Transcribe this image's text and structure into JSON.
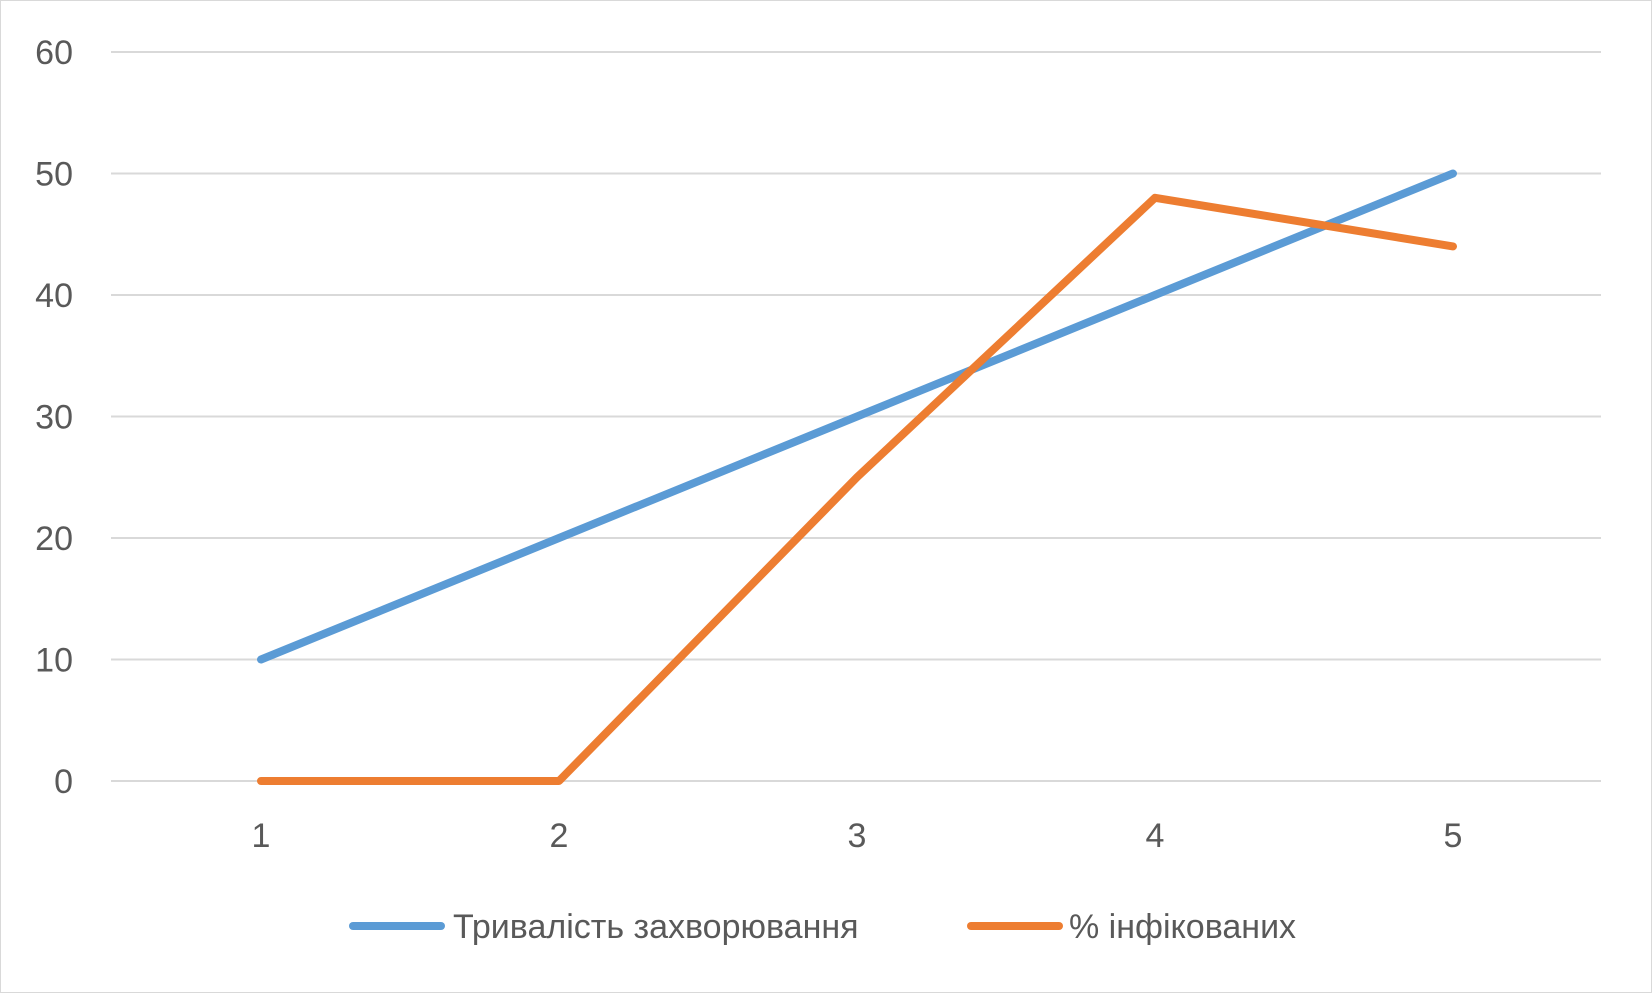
{
  "chart_data": {
    "type": "line",
    "x": [
      "1",
      "2",
      "3",
      "4",
      "5"
    ],
    "series": [
      {
        "name": "Тривалість захворювання",
        "values": [
          10,
          20,
          30,
          40,
          50
        ],
        "color": "#5b9bd5"
      },
      {
        "name": "% інфікованих",
        "values": [
          0,
          0,
          25,
          48,
          44
        ],
        "color": "#ed7d31"
      }
    ],
    "yticks": [
      "0",
      "10",
      "20",
      "30",
      "40",
      "50",
      "60"
    ],
    "ylim": [
      0,
      60
    ],
    "grid": true,
    "legend": "bottom",
    "title": "",
    "xlabel": "",
    "ylabel": ""
  }
}
